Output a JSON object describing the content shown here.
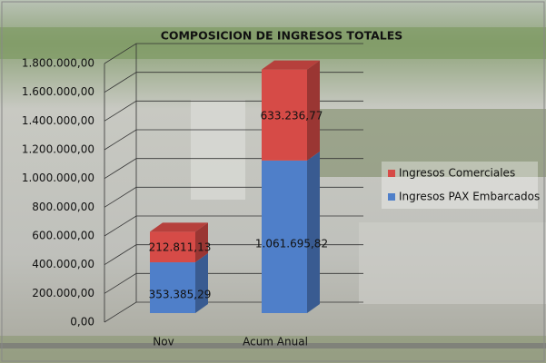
{
  "chart_data": {
    "type": "bar3d-stacked",
    "title": "COMPOSICION DE INGRESOS TOTALES",
    "categories": [
      "Nov",
      "Acum Anual"
    ],
    "series": [
      {
        "name": "Ingresos PAX Embarcados",
        "color": "#4f7fc9",
        "values": [
          353385.29,
          1061695.82
        ],
        "value_labels": [
          "353.385,29",
          "1.061.695,82"
        ]
      },
      {
        "name": "Ingresos Comerciales",
        "color": "#d64b47",
        "values": [
          212811.13,
          633236.77
        ],
        "value_labels": [
          "212.811,13",
          "633.236,77"
        ]
      }
    ],
    "ylim": [
      0,
      1800000
    ],
    "yticks": [
      {
        "value": 0,
        "label": "0,00"
      },
      {
        "value": 200000,
        "label": "200.000,00"
      },
      {
        "value": 400000,
        "label": "400.000,00"
      },
      {
        "value": 600000,
        "label": "600.000,00"
      },
      {
        "value": 800000,
        "label": "800.000,00"
      },
      {
        "value": 1000000,
        "label": "1.000.000,00"
      },
      {
        "value": 1200000,
        "label": "1.200.000,00"
      },
      {
        "value": 1400000,
        "label": "1.400.000,00"
      },
      {
        "value": 1600000,
        "label": "1.600.000,00"
      },
      {
        "value": 1800000,
        "label": "1.800.000,00"
      }
    ],
    "grid": true,
    "legend": "right"
  }
}
